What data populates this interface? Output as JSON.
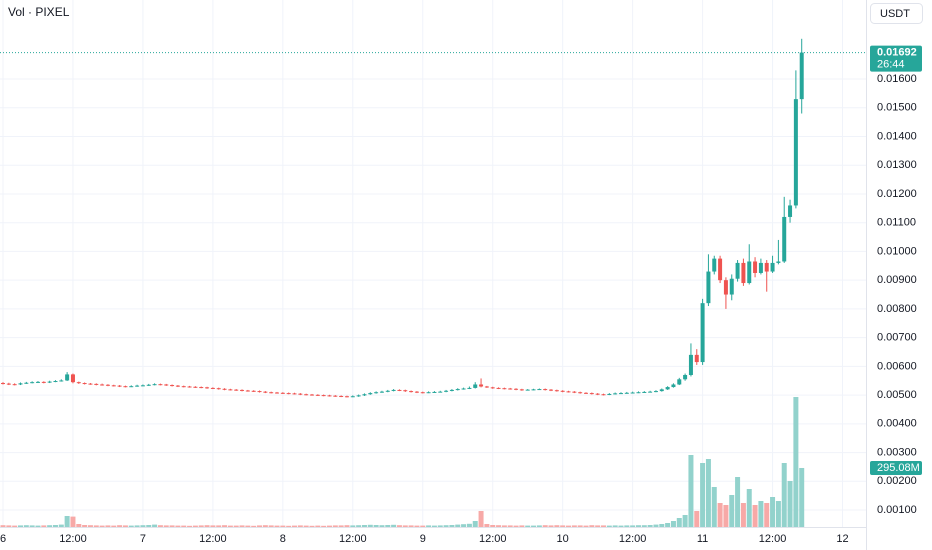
{
  "chart_data": {
    "type": "candlestick",
    "title": "Vol · PIXEL",
    "currency_button": "USDT",
    "up_color": "#26a69a",
    "down_color": "#ef5350",
    "volume_up_color": "#92d2cc",
    "volume_down_color": "#f7a9a7",
    "ylim": [
      0.00041,
      0.01875
    ],
    "yticks": [
      {
        "value": 0.001,
        "label": "0.00100"
      },
      {
        "value": 0.002,
        "label": "0.00200"
      },
      {
        "value": 0.003,
        "label": "0.00300"
      },
      {
        "value": 0.004,
        "label": "0.00400"
      },
      {
        "value": 0.005,
        "label": "0.00500"
      },
      {
        "value": 0.006,
        "label": "0.00600"
      },
      {
        "value": 0.007,
        "label": "0.00700"
      },
      {
        "value": 0.008,
        "label": "0.00800"
      },
      {
        "value": 0.009,
        "label": "0.00900"
      },
      {
        "value": 0.01,
        "label": "0.01000"
      },
      {
        "value": 0.011,
        "label": "0.01100"
      },
      {
        "value": 0.012,
        "label": "0.01200"
      },
      {
        "value": 0.013,
        "label": "0.01300"
      },
      {
        "value": 0.014,
        "label": "0.01400"
      },
      {
        "value": 0.015,
        "label": "0.01500"
      },
      {
        "value": 0.016,
        "label": "0.01600"
      }
    ],
    "xticks": [
      {
        "value": 0,
        "label": "6"
      },
      {
        "value": 12,
        "label": "12:00"
      },
      {
        "value": 24,
        "label": "7"
      },
      {
        "value": 36,
        "label": "12:00"
      },
      {
        "value": 48,
        "label": "8"
      },
      {
        "value": 60,
        "label": "12:00"
      },
      {
        "value": 72,
        "label": "9"
      },
      {
        "value": 84,
        "label": "12:00"
      },
      {
        "value": 96,
        "label": "10"
      },
      {
        "value": 108,
        "label": "12:00"
      },
      {
        "value": 120,
        "label": "11"
      },
      {
        "value": 132,
        "label": "12:00"
      },
      {
        "value": 144,
        "label": "12"
      }
    ],
    "volume_lim": [
      0,
      1000000000
    ],
    "last_price_label": "0.01692",
    "countdown": "26:44",
    "last_volume_label": "295.08M",
    "grid": true,
    "candles": [
      [
        0.00542,
        0.00545,
        0.00537,
        0.0054,
        9000000
      ],
      [
        0.0054,
        0.00543,
        0.00535,
        0.00538,
        8000000
      ],
      [
        0.00538,
        0.00541,
        0.00534,
        0.00537,
        7000000
      ],
      [
        0.00537,
        0.00544,
        0.00535,
        0.00541,
        8000000
      ],
      [
        0.00541,
        0.00546,
        0.00539,
        0.00543,
        9000000
      ],
      [
        0.00543,
        0.00548,
        0.00541,
        0.00545,
        8000000
      ],
      [
        0.00545,
        0.00549,
        0.00542,
        0.00546,
        7000000
      ],
      [
        0.00546,
        0.00548,
        0.00541,
        0.00544,
        8000000
      ],
      [
        0.00544,
        0.0055,
        0.00542,
        0.00547,
        9000000
      ],
      [
        0.00547,
        0.00552,
        0.00545,
        0.00549,
        10000000
      ],
      [
        0.00549,
        0.00555,
        0.00547,
        0.00551,
        12000000
      ],
      [
        0.00551,
        0.0058,
        0.00549,
        0.00572,
        55000000
      ],
      [
        0.00572,
        0.00575,
        0.00541,
        0.00545,
        52000000
      ],
      [
        0.00545,
        0.00547,
        0.00539,
        0.00542,
        15000000
      ],
      [
        0.00542,
        0.00544,
        0.00537,
        0.0054,
        10000000
      ],
      [
        0.0054,
        0.00542,
        0.00536,
        0.00539,
        9000000
      ],
      [
        0.00539,
        0.00541,
        0.00534,
        0.00537,
        8000000
      ],
      [
        0.00537,
        0.0054,
        0.00533,
        0.00536,
        7000000
      ],
      [
        0.00536,
        0.00538,
        0.00531,
        0.00534,
        8000000
      ],
      [
        0.00534,
        0.00536,
        0.0053,
        0.00533,
        7000000
      ],
      [
        0.00533,
        0.00535,
        0.00528,
        0.00531,
        9000000
      ],
      [
        0.00531,
        0.00533,
        0.00527,
        0.0053,
        8000000
      ],
      [
        0.0053,
        0.00534,
        0.00528,
        0.00531,
        7000000
      ],
      [
        0.00531,
        0.00536,
        0.00529,
        0.00533,
        8000000
      ],
      [
        0.00533,
        0.00537,
        0.00531,
        0.00534,
        9000000
      ],
      [
        0.00534,
        0.00539,
        0.00532,
        0.00536,
        10000000
      ],
      [
        0.00536,
        0.00541,
        0.00534,
        0.00538,
        12000000
      ],
      [
        0.00538,
        0.0054,
        0.00534,
        0.00537,
        9000000
      ],
      [
        0.00537,
        0.00539,
        0.00532,
        0.00535,
        8000000
      ],
      [
        0.00535,
        0.00537,
        0.0053,
        0.00533,
        8000000
      ],
      [
        0.00533,
        0.00535,
        0.00528,
        0.00531,
        7000000
      ],
      [
        0.00531,
        0.00533,
        0.00527,
        0.0053,
        7000000
      ],
      [
        0.0053,
        0.00532,
        0.00526,
        0.00529,
        6000000
      ],
      [
        0.00529,
        0.00531,
        0.00525,
        0.00528,
        7000000
      ],
      [
        0.00528,
        0.0053,
        0.00524,
        0.00527,
        8000000
      ],
      [
        0.00527,
        0.00529,
        0.00522,
        0.00525,
        9000000
      ],
      [
        0.00525,
        0.00527,
        0.00521,
        0.00524,
        8000000
      ],
      [
        0.00524,
        0.00526,
        0.00519,
        0.00522,
        8000000
      ],
      [
        0.00522,
        0.00524,
        0.00517,
        0.0052,
        9000000
      ],
      [
        0.0052,
        0.00522,
        0.00516,
        0.00519,
        7000000
      ],
      [
        0.00519,
        0.00521,
        0.00515,
        0.00518,
        7000000
      ],
      [
        0.00518,
        0.0052,
        0.00513,
        0.00516,
        8000000
      ],
      [
        0.00516,
        0.00518,
        0.00512,
        0.00515,
        7000000
      ],
      [
        0.00515,
        0.00517,
        0.00511,
        0.00514,
        6000000
      ],
      [
        0.00514,
        0.00516,
        0.00509,
        0.00512,
        8000000
      ],
      [
        0.00512,
        0.00514,
        0.00507,
        0.0051,
        9000000
      ],
      [
        0.0051,
        0.00512,
        0.00506,
        0.00509,
        8000000
      ],
      [
        0.00509,
        0.00511,
        0.00505,
        0.00508,
        7000000
      ],
      [
        0.00508,
        0.0051,
        0.00504,
        0.00507,
        7000000
      ],
      [
        0.00507,
        0.00509,
        0.00503,
        0.00506,
        6000000
      ],
      [
        0.00506,
        0.00508,
        0.00502,
        0.00505,
        7000000
      ],
      [
        0.00505,
        0.00507,
        0.005,
        0.00503,
        8000000
      ],
      [
        0.00503,
        0.00505,
        0.00499,
        0.00502,
        7000000
      ],
      [
        0.00502,
        0.00504,
        0.00498,
        0.00501,
        6000000
      ],
      [
        0.00501,
        0.00503,
        0.00497,
        0.005,
        7000000
      ],
      [
        0.005,
        0.00502,
        0.00496,
        0.00499,
        6000000
      ],
      [
        0.00499,
        0.00501,
        0.00495,
        0.00498,
        7000000
      ],
      [
        0.00498,
        0.005,
        0.00494,
        0.00497,
        8000000
      ],
      [
        0.00497,
        0.00499,
        0.00493,
        0.00496,
        8000000
      ],
      [
        0.00496,
        0.00498,
        0.00492,
        0.00495,
        9000000
      ],
      [
        0.00495,
        0.00499,
        0.00493,
        0.00496,
        8000000
      ],
      [
        0.00496,
        0.00502,
        0.00494,
        0.00499,
        9000000
      ],
      [
        0.00499,
        0.00506,
        0.00497,
        0.00503,
        10000000
      ],
      [
        0.00503,
        0.0051,
        0.00501,
        0.00507,
        11000000
      ],
      [
        0.00507,
        0.00513,
        0.00505,
        0.0051,
        10000000
      ],
      [
        0.0051,
        0.00515,
        0.00508,
        0.00512,
        9000000
      ],
      [
        0.00512,
        0.00518,
        0.0051,
        0.00515,
        10000000
      ],
      [
        0.00515,
        0.00521,
        0.00513,
        0.00518,
        11000000
      ],
      [
        0.00518,
        0.0052,
        0.00514,
        0.00517,
        9000000
      ],
      [
        0.00517,
        0.00519,
        0.00511,
        0.00514,
        8000000
      ],
      [
        0.00514,
        0.00516,
        0.00509,
        0.00512,
        8000000
      ],
      [
        0.00512,
        0.00514,
        0.00507,
        0.0051,
        7000000
      ],
      [
        0.0051,
        0.00512,
        0.00506,
        0.00509,
        7000000
      ],
      [
        0.00509,
        0.00513,
        0.00507,
        0.0051,
        8000000
      ],
      [
        0.0051,
        0.00514,
        0.00508,
        0.00511,
        7000000
      ],
      [
        0.00511,
        0.00515,
        0.00509,
        0.00512,
        8000000
      ],
      [
        0.00512,
        0.00518,
        0.0051,
        0.00515,
        9000000
      ],
      [
        0.00515,
        0.00521,
        0.00513,
        0.00518,
        10000000
      ],
      [
        0.00518,
        0.00524,
        0.00516,
        0.00521,
        12000000
      ],
      [
        0.00521,
        0.00526,
        0.00519,
        0.00523,
        14000000
      ],
      [
        0.00523,
        0.0053,
        0.00521,
        0.00525,
        16000000
      ],
      [
        0.00525,
        0.00545,
        0.00523,
        0.00537,
        30000000
      ],
      [
        0.00537,
        0.00558,
        0.00527,
        0.0053,
        80000000
      ],
      [
        0.0053,
        0.00532,
        0.00525,
        0.00527,
        15000000
      ],
      [
        0.00527,
        0.00529,
        0.00522,
        0.00525,
        10000000
      ],
      [
        0.00525,
        0.00527,
        0.00521,
        0.00524,
        9000000
      ],
      [
        0.00524,
        0.00526,
        0.0052,
        0.00523,
        8000000
      ],
      [
        0.00523,
        0.00525,
        0.00519,
        0.00522,
        8000000
      ],
      [
        0.00522,
        0.00524,
        0.00517,
        0.0052,
        7000000
      ],
      [
        0.0052,
        0.00522,
        0.00515,
        0.00518,
        8000000
      ],
      [
        0.00518,
        0.00521,
        0.00516,
        0.00519,
        7000000
      ],
      [
        0.00519,
        0.00522,
        0.00517,
        0.0052,
        7000000
      ],
      [
        0.0052,
        0.00523,
        0.00518,
        0.00521,
        8000000
      ],
      [
        0.00521,
        0.00523,
        0.00516,
        0.00519,
        9000000
      ],
      [
        0.00519,
        0.00521,
        0.00514,
        0.00517,
        8000000
      ],
      [
        0.00517,
        0.00519,
        0.00512,
        0.00515,
        9000000
      ],
      [
        0.00515,
        0.00517,
        0.0051,
        0.00513,
        8000000
      ],
      [
        0.00513,
        0.00515,
        0.00509,
        0.00512,
        7000000
      ],
      [
        0.00512,
        0.00514,
        0.00507,
        0.0051,
        8000000
      ],
      [
        0.0051,
        0.00512,
        0.00505,
        0.00508,
        8000000
      ],
      [
        0.00508,
        0.0051,
        0.00504,
        0.00507,
        7000000
      ],
      [
        0.00507,
        0.00509,
        0.00502,
        0.00505,
        9000000
      ],
      [
        0.00505,
        0.00507,
        0.005,
        0.00503,
        8000000
      ],
      [
        0.00503,
        0.00505,
        0.00499,
        0.00502,
        8000000
      ],
      [
        0.00502,
        0.00507,
        0.005,
        0.00504,
        7000000
      ],
      [
        0.00504,
        0.00509,
        0.00502,
        0.00506,
        8000000
      ],
      [
        0.00506,
        0.0051,
        0.00504,
        0.00507,
        7000000
      ],
      [
        0.00507,
        0.00511,
        0.00505,
        0.00508,
        8000000
      ],
      [
        0.00508,
        0.00512,
        0.00506,
        0.00509,
        8000000
      ],
      [
        0.00509,
        0.00513,
        0.00507,
        0.0051,
        9000000
      ],
      [
        0.0051,
        0.00514,
        0.00508,
        0.00511,
        9000000
      ],
      [
        0.00511,
        0.00515,
        0.00509,
        0.00512,
        10000000
      ],
      [
        0.00512,
        0.00517,
        0.0051,
        0.00514,
        12000000
      ],
      [
        0.00514,
        0.00523,
        0.00512,
        0.0052,
        15000000
      ],
      [
        0.0052,
        0.00531,
        0.00518,
        0.00528,
        20000000
      ],
      [
        0.00528,
        0.00541,
        0.00526,
        0.00537,
        30000000
      ],
      [
        0.00537,
        0.0056,
        0.00535,
        0.00555,
        45000000
      ],
      [
        0.00555,
        0.00575,
        0.0055,
        0.0057,
        60000000
      ],
      [
        0.0057,
        0.0068,
        0.00565,
        0.0064,
        360000000
      ],
      [
        0.0064,
        0.0066,
        0.00605,
        0.00615,
        80000000
      ],
      [
        0.00615,
        0.00835,
        0.00605,
        0.0082,
        320000000
      ],
      [
        0.0082,
        0.0099,
        0.0081,
        0.0093,
        340000000
      ],
      [
        0.0093,
        0.00985,
        0.0092,
        0.00975,
        200000000
      ],
      [
        0.00975,
        0.00985,
        0.0089,
        0.009,
        120000000
      ],
      [
        0.009,
        0.0091,
        0.008,
        0.0085,
        110000000
      ],
      [
        0.0085,
        0.0092,
        0.0083,
        0.00905,
        160000000
      ],
      [
        0.00905,
        0.0097,
        0.00895,
        0.0096,
        250000000
      ],
      [
        0.0096,
        0.00975,
        0.0088,
        0.0089,
        120000000
      ],
      [
        0.0089,
        0.01025,
        0.00885,
        0.00965,
        190000000
      ],
      [
        0.00965,
        0.0098,
        0.0091,
        0.00925,
        110000000
      ],
      [
        0.00925,
        0.00975,
        0.0092,
        0.0096,
        130000000
      ],
      [
        0.0096,
        0.0097,
        0.0086,
        0.0093,
        120000000
      ],
      [
        0.0093,
        0.00985,
        0.00925,
        0.0096,
        150000000
      ],
      [
        0.0096,
        0.0104,
        0.00955,
        0.00965,
        130000000
      ],
      [
        0.00965,
        0.0119,
        0.0096,
        0.0112,
        320000000
      ],
      [
        0.0112,
        0.0118,
        0.011,
        0.0116,
        230000000
      ],
      [
        0.0116,
        0.0163,
        0.0115,
        0.0153,
        650000000
      ],
      [
        0.0153,
        0.0174,
        0.0148,
        0.01692,
        295080000
      ]
    ]
  }
}
